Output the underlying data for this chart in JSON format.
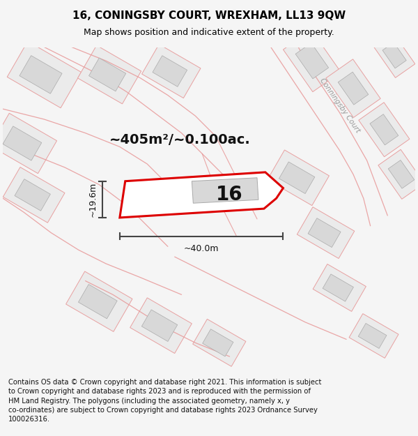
{
  "title": "16, CONINGSBY COURT, WREXHAM, LL13 9QW",
  "subtitle": "Map shows position and indicative extent of the property.",
  "footer": "Contains OS data © Crown copyright and database right 2021. This information is subject to Crown copyright and database rights 2023 and is reproduced with the permission of HM Land Registry. The polygons (including the associated geometry, namely x, y co-ordinates) are subject to Crown copyright and database rights 2023 Ordnance Survey 100026316.",
  "area_label": "~405m²/~0.100ac.",
  "width_label": "~40.0m",
  "height_label": "~19.6m",
  "number_label": "16",
  "map_bg": "#f0eeec",
  "plot_fill": "#ffffff",
  "plot_edge": "#dd0000",
  "building_fill": "#d8d8d8",
  "building_edge": "#aaaaaa",
  "lot_fill": "#ebebeb",
  "lot_edge": "#e8a0a0",
  "road_fill": "#f5eded",
  "road_label_color": "#999999",
  "dim_color": "#444444",
  "title_fontsize": 11,
  "subtitle_fontsize": 9,
  "footer_fontsize": 7.2,
  "area_fontsize": 14,
  "num_fontsize": 20,
  "dim_fontsize": 9
}
